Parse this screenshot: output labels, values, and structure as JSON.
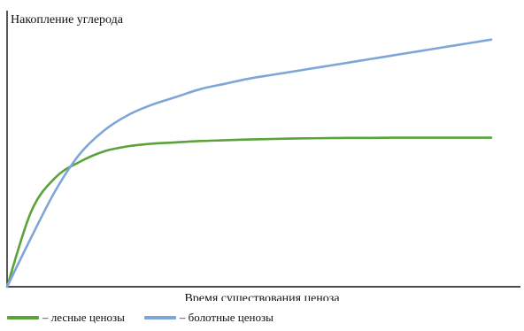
{
  "chart_data": {
    "type": "line",
    "ylabel": "Накопление углерода",
    "xlabel": "Время существования ценоза",
    "x": [
      0,
      0.05,
      0.1,
      0.15,
      0.2,
      0.25,
      0.3,
      0.35,
      0.4,
      0.45,
      0.5,
      0.55,
      0.6,
      0.65,
      0.7,
      0.75,
      0.8,
      0.85,
      0.9,
      0.95,
      1.0
    ],
    "xlim": [
      0,
      1
    ],
    "ylim": [
      0,
      1
    ],
    "series": [
      {
        "name": "– лесные ценозы",
        "color": "#5aa33a",
        "values": [
          0.0,
          0.29,
          0.42,
          0.48,
          0.52,
          0.54,
          0.55,
          0.555,
          0.56,
          0.563,
          0.566,
          0.568,
          0.57,
          0.571,
          0.572,
          0.572,
          0.573,
          0.573,
          0.573,
          0.573,
          0.573
        ]
      },
      {
        "name": "– болотные ценозы",
        "color": "#7ea6d8",
        "values": [
          0.0,
          0.19,
          0.37,
          0.51,
          0.6,
          0.66,
          0.7,
          0.73,
          0.76,
          0.78,
          0.8,
          0.815,
          0.83,
          0.845,
          0.86,
          0.875,
          0.89,
          0.905,
          0.92,
          0.935,
          0.95
        ]
      }
    ],
    "grid": false,
    "legend_position": "bottom"
  }
}
